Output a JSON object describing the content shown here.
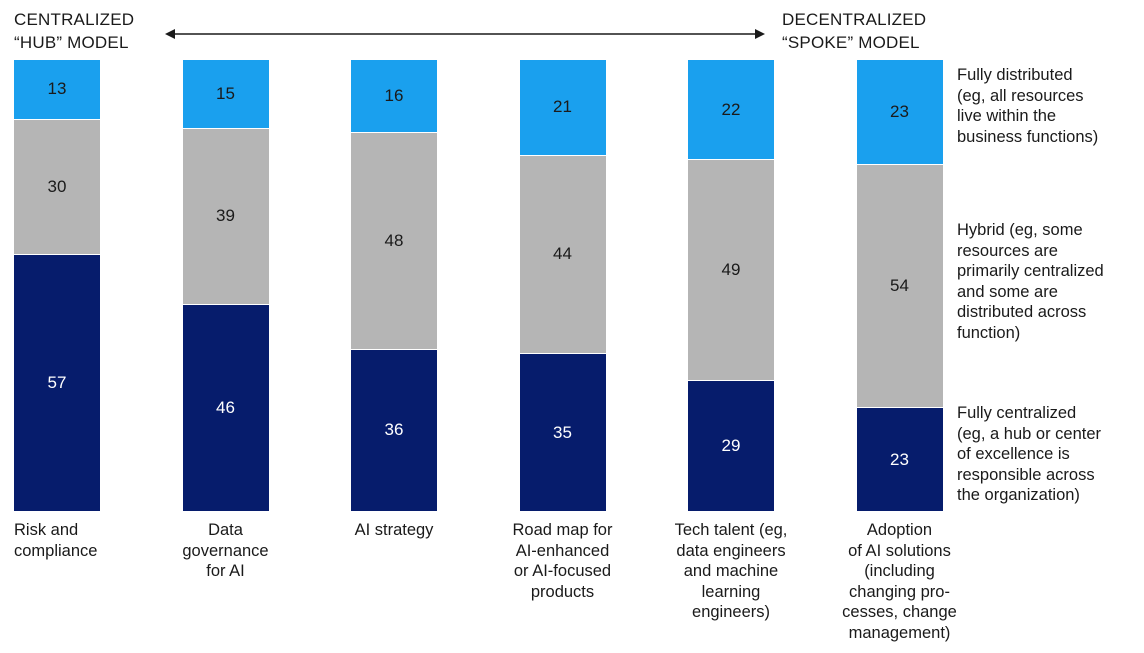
{
  "header": {
    "left": [
      "CENTRALIZED",
      "“HUB” MODEL"
    ],
    "right": [
      "DECENTRALIZED",
      "“SPOKE” MODEL"
    ]
  },
  "colors": {
    "fully_distributed": "#1aa0ee",
    "hybrid": "#b5b5b5",
    "fully_centralized": "#061c6c"
  },
  "chart_data": {
    "type": "bar",
    "stacked": true,
    "categories": [
      "Risk and\ncompliance",
      "Data\ngovernance\nfor AI",
      "AI strategy",
      "Road map for\nAI-enhanced\nor AI-focused\nproducts",
      "Tech talent (eg,\ndata engineers\nand machine\nlearning\nengineers)",
      "Adoption\nof AI solutions\n(including\nchanging pro-\ncesses, change\nmanagement)"
    ],
    "series": [
      {
        "name": "Fully centralized\n(eg, a hub or center\nof excellence is\nresponsible across\nthe organization)",
        "values": [
          57,
          46,
          36,
          35,
          29,
          23
        ]
      },
      {
        "name": "Hybrid (eg, some\nresources are\nprimarily centralized\nand some are\ndistributed across\nfunction)",
        "values": [
          30,
          39,
          48,
          44,
          49,
          54
        ]
      },
      {
        "name": "Fully distributed\n(eg, all resources\nlive within the\nbusiness functions)",
        "values": [
          13,
          15,
          16,
          21,
          22,
          23
        ]
      }
    ],
    "legend_placement": "right",
    "grid": false
  }
}
